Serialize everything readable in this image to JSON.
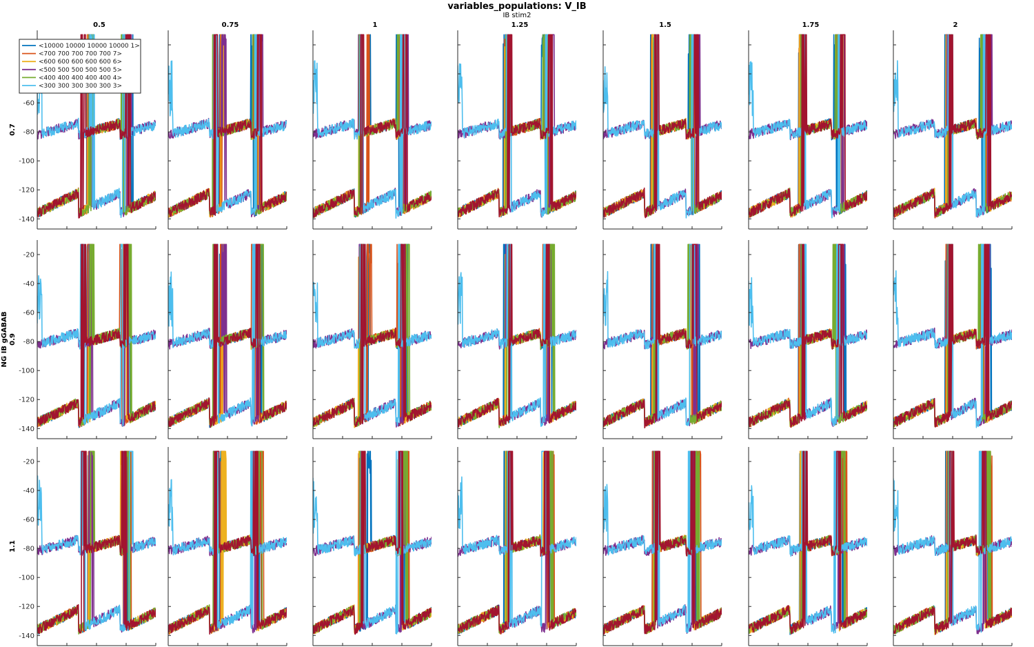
{
  "chart_data": {
    "type": "line",
    "title": "variables_populations: V_IB",
    "subtitle": "IB stim2",
    "col_values": [
      "0.5",
      "0.75",
      "1",
      "1.25",
      "1.5",
      "1.75",
      "2"
    ],
    "ylabel": "NG IB gGABAB",
    "row_values": [
      "0.7",
      "0.9",
      "1.1"
    ],
    "xlim": [
      0,
      2000
    ],
    "ylim": [
      -147,
      -10
    ],
    "xticks": [
      0,
      500,
      1000,
      1500,
      2000
    ],
    "yticks": [
      -140,
      -120,
      -100,
      -80,
      -60,
      -40,
      -20
    ],
    "grid": false,
    "legend_position": "top-left",
    "legend": [
      {
        "label": "<10000 10000 10000 10000 1>",
        "color": "#0072BD"
      },
      {
        "label": "<700 700 700 700 700 7>",
        "color": "#D95319"
      },
      {
        "label": "<600 600 600 600 600 6>",
        "color": "#EDB120"
      },
      {
        "label": "<500 500 500 500 500 5>",
        "color": "#7E2F8E"
      },
      {
        "label": "<400 400 400 400 400 4>",
        "color": "#77AC30"
      },
      {
        "label": "<300 300 300 300 300 3>",
        "color": "#4DBEEE"
      }
    ],
    "extra_trace_color": "#A2142F",
    "series_waveform": {
      "baseline_low": -130,
      "baseline_high": -78,
      "spike_peak": -20,
      "burst_times": [
        850,
        1500
      ]
    }
  }
}
